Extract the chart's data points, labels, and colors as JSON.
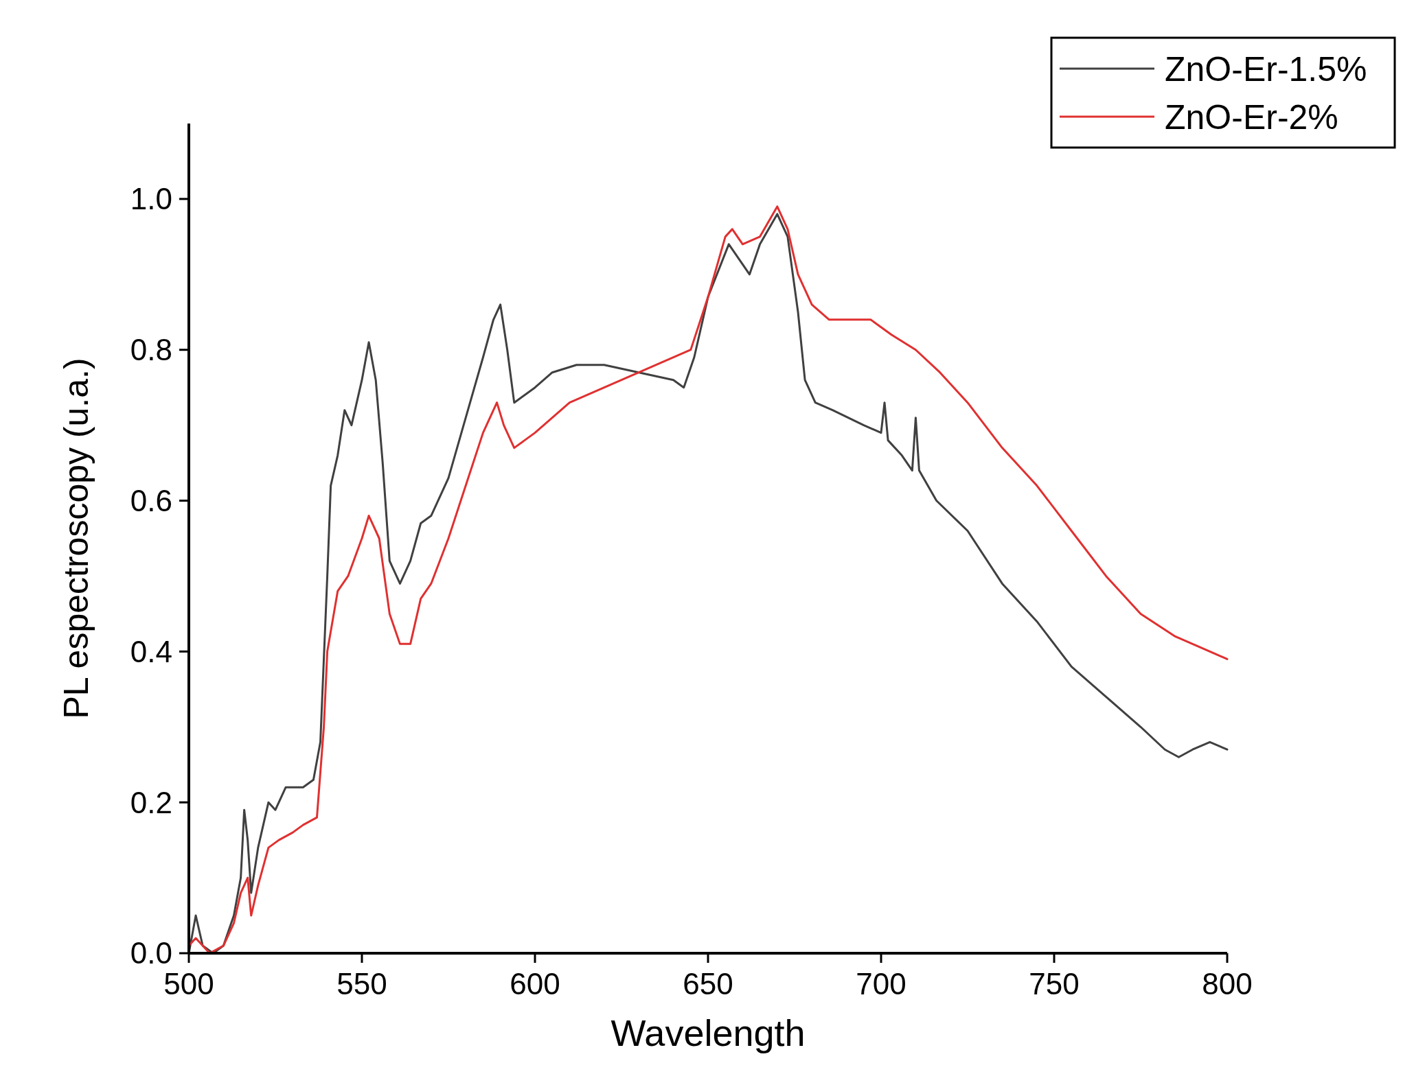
{
  "chart_data": {
    "type": "line",
    "xlabel": "Wavelength",
    "ylabel": "PL espectroscopy (u.a.)",
    "xlim": [
      500,
      800
    ],
    "xticks": [
      500,
      550,
      600,
      650,
      700,
      750,
      800
    ],
    "ylim": [
      0,
      1.1
    ],
    "yticks": [
      {
        "value": 0,
        "label": "0.0"
      },
      {
        "value": 0.2,
        "label": "0.2"
      },
      {
        "value": 0.4,
        "label": "0.4"
      },
      {
        "value": 0.6,
        "label": "0.6"
      },
      {
        "value": 0.8,
        "label": "0.8"
      },
      {
        "value": 1,
        "label": "1.0"
      }
    ],
    "grid": false,
    "legend": "top right",
    "line_style": "solid",
    "series": [
      {
        "name": "ZnO-Er-1.5%",
        "color": "#404040",
        "x": [
          500,
          502,
          504,
          507,
          510,
          513,
          515,
          516,
          517,
          518,
          520,
          523,
          525,
          528,
          533,
          536,
          538,
          540,
          541,
          543,
          545,
          547,
          550,
          552,
          554,
          556,
          558,
          561,
          564,
          567,
          570,
          575,
          580,
          585,
          588,
          590,
          592,
          594,
          600,
          605,
          612,
          620,
          630,
          640,
          643,
          646,
          650,
          656,
          659,
          662,
          665,
          670,
          673,
          676,
          678,
          681,
          686,
          695,
          700,
          701,
          702,
          706,
          709,
          710,
          711,
          716,
          725,
          735,
          745,
          755,
          765,
          775,
          782,
          786,
          790,
          795,
          800
        ],
        "values": [
          0.0,
          0.05,
          0.01,
          0.0,
          0.01,
          0.05,
          0.1,
          0.19,
          0.15,
          0.08,
          0.14,
          0.2,
          0.19,
          0.22,
          0.22,
          0.23,
          0.28,
          0.5,
          0.62,
          0.66,
          0.72,
          0.7,
          0.76,
          0.81,
          0.76,
          0.65,
          0.52,
          0.49,
          0.52,
          0.57,
          0.58,
          0.63,
          0.71,
          0.79,
          0.84,
          0.86,
          0.8,
          0.73,
          0.75,
          0.77,
          0.78,
          0.78,
          0.77,
          0.76,
          0.75,
          0.79,
          0.87,
          0.94,
          0.92,
          0.9,
          0.94,
          0.98,
          0.95,
          0.85,
          0.76,
          0.73,
          0.72,
          0.7,
          0.69,
          0.73,
          0.68,
          0.66,
          0.64,
          0.71,
          0.64,
          0.6,
          0.56,
          0.49,
          0.44,
          0.38,
          0.34,
          0.3,
          0.27,
          0.26,
          0.27,
          0.28,
          0.27
        ]
      },
      {
        "name": "ZnO-Er-2%",
        "color": "#e03030",
        "x": [
          500,
          502,
          506,
          510,
          513,
          515,
          517,
          518,
          520,
          523,
          526,
          530,
          533,
          537,
          539,
          540,
          543,
          546,
          550,
          552,
          555,
          558,
          561,
          564,
          567,
          570,
          575,
          580,
          585,
          589,
          591,
          594,
          600,
          610,
          620,
          630,
          640,
          645,
          650,
          655,
          657,
          660,
          665,
          670,
          673,
          676,
          680,
          685,
          690,
          697,
          703,
          710,
          717,
          725,
          735,
          745,
          755,
          765,
          775,
          785,
          790,
          795,
          800
        ],
        "values": [
          0.01,
          0.02,
          0.0,
          0.01,
          0.04,
          0.08,
          0.1,
          0.05,
          0.09,
          0.14,
          0.15,
          0.16,
          0.17,
          0.18,
          0.3,
          0.4,
          0.48,
          0.5,
          0.55,
          0.58,
          0.55,
          0.45,
          0.41,
          0.41,
          0.47,
          0.49,
          0.55,
          0.62,
          0.69,
          0.73,
          0.7,
          0.67,
          0.69,
          0.73,
          0.75,
          0.77,
          0.79,
          0.8,
          0.87,
          0.95,
          0.96,
          0.94,
          0.95,
          0.99,
          0.96,
          0.9,
          0.86,
          0.84,
          0.84,
          0.84,
          0.82,
          0.8,
          0.77,
          0.73,
          0.67,
          0.62,
          0.56,
          0.5,
          0.45,
          0.42,
          0.41,
          0.4,
          0.39
        ]
      }
    ]
  }
}
